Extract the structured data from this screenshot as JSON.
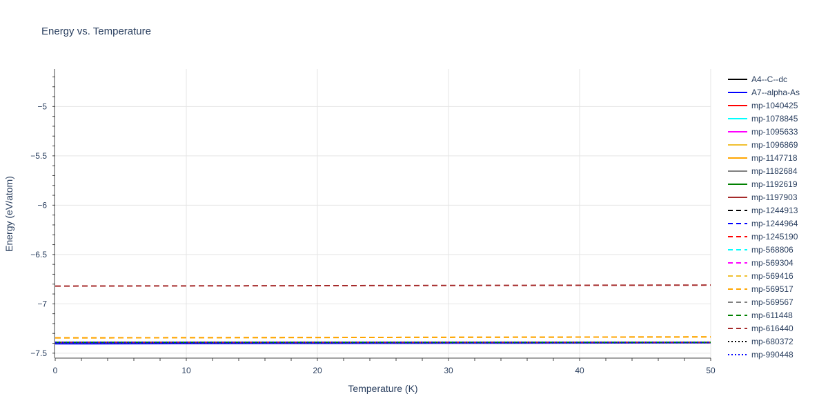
{
  "chart_data": {
    "type": "line",
    "title": "Energy vs. Temperature",
    "xlabel": "Temperature (K)",
    "ylabel": "Energy (eV/atom)",
    "xlim": [
      0,
      50
    ],
    "ylim": [
      -7.55,
      -4.62
    ],
    "x_ticks": [
      0,
      10,
      20,
      30,
      40,
      50
    ],
    "x_tick_labels": [
      "0",
      "10",
      "20",
      "30",
      "40",
      "50"
    ],
    "y_ticks": [
      -5,
      -5.5,
      -6,
      -6.5,
      -7,
      -7.5
    ],
    "y_tick_labels": [
      "−5",
      "−5.5",
      "−6",
      "−6.5",
      "−7",
      "−7.5"
    ],
    "grid": true,
    "legend_position": "right",
    "series": [
      {
        "name": "A4--C--dc",
        "color": "#000000",
        "dash": "solid",
        "x": [
          0,
          50
        ],
        "values": [
          -7.39,
          -7.39
        ]
      },
      {
        "name": "A7--alpha-As",
        "color": "#0000ff",
        "dash": "solid",
        "x": [
          0,
          50
        ],
        "values": [
          -7.405,
          -7.395
        ]
      },
      {
        "name": "mp-1040425",
        "color": "#ff0000",
        "dash": "solid",
        "x": [
          0,
          50
        ],
        "values": [
          -7.39,
          -7.39
        ]
      },
      {
        "name": "mp-1078845",
        "color": "#00ffff",
        "dash": "solid",
        "x": [
          0,
          50
        ],
        "values": [
          -7.39,
          -7.39
        ]
      },
      {
        "name": "mp-1095633",
        "color": "#ff00ff",
        "dash": "solid",
        "x": [
          0,
          50
        ],
        "values": [
          -7.39,
          -7.39
        ]
      },
      {
        "name": "mp-1096869",
        "color": "#f0c030",
        "dash": "solid",
        "x": [
          0,
          50
        ],
        "values": [
          -7.39,
          -7.39
        ]
      },
      {
        "name": "mp-1147718",
        "color": "#ffa500",
        "dash": "solid",
        "x": [
          0,
          50
        ],
        "values": [
          -7.39,
          -7.39
        ]
      },
      {
        "name": "mp-1182684",
        "color": "#808080",
        "dash": "solid",
        "x": [
          0,
          50
        ],
        "values": [
          -7.39,
          -7.39
        ]
      },
      {
        "name": "mp-1192619",
        "color": "#008000",
        "dash": "solid",
        "x": [
          0,
          50
        ],
        "values": [
          -7.39,
          -7.39
        ]
      },
      {
        "name": "mp-1197903",
        "color": "#a52a2a",
        "dash": "solid",
        "x": [
          0,
          50
        ],
        "values": [
          -7.39,
          -7.39
        ]
      },
      {
        "name": "mp-1244913",
        "color": "#000000",
        "dash": "dash",
        "x": [
          0,
          50
        ],
        "values": [
          -7.39,
          -7.39
        ]
      },
      {
        "name": "mp-1244964",
        "color": "#0000ff",
        "dash": "dash",
        "x": [
          0,
          50
        ],
        "values": [
          -7.39,
          -7.39
        ]
      },
      {
        "name": "mp-1245190",
        "color": "#ff0000",
        "dash": "dash",
        "x": [
          0,
          50
        ],
        "values": [
          -7.39,
          -7.39
        ]
      },
      {
        "name": "mp-568806",
        "color": "#00ffff",
        "dash": "dash",
        "x": [
          0,
          50
        ],
        "values": [
          -7.39,
          -7.39
        ]
      },
      {
        "name": "mp-569304",
        "color": "#ff00ff",
        "dash": "dash",
        "x": [
          0,
          50
        ],
        "values": [
          -7.39,
          -7.39
        ]
      },
      {
        "name": "mp-569416",
        "color": "#f0c030",
        "dash": "dash",
        "x": [
          0,
          50
        ],
        "values": [
          -7.345,
          -7.335
        ]
      },
      {
        "name": "mp-569517",
        "color": "#ffa500",
        "dash": "dash",
        "x": [
          0,
          50
        ],
        "values": [
          -7.345,
          -7.335
        ]
      },
      {
        "name": "mp-569567",
        "color": "#808080",
        "dash": "dash",
        "x": [
          0,
          50
        ],
        "values": [
          -7.39,
          -7.39
        ]
      },
      {
        "name": "mp-611448",
        "color": "#008000",
        "dash": "dash",
        "x": [
          0,
          50
        ],
        "values": [
          -7.39,
          -7.39
        ]
      },
      {
        "name": "mp-616440",
        "color": "#a52a2a",
        "dash": "dash",
        "x": [
          0,
          50
        ],
        "values": [
          -6.82,
          -6.81
        ]
      },
      {
        "name": "mp-680372",
        "color": "#000000",
        "dash": "dot",
        "x": [
          0,
          50
        ],
        "values": [
          -7.39,
          -7.39
        ]
      },
      {
        "name": "mp-990448",
        "color": "#0000ff",
        "dash": "dot",
        "x": [
          0,
          50
        ],
        "values": [
          -7.39,
          -7.39
        ]
      }
    ]
  }
}
